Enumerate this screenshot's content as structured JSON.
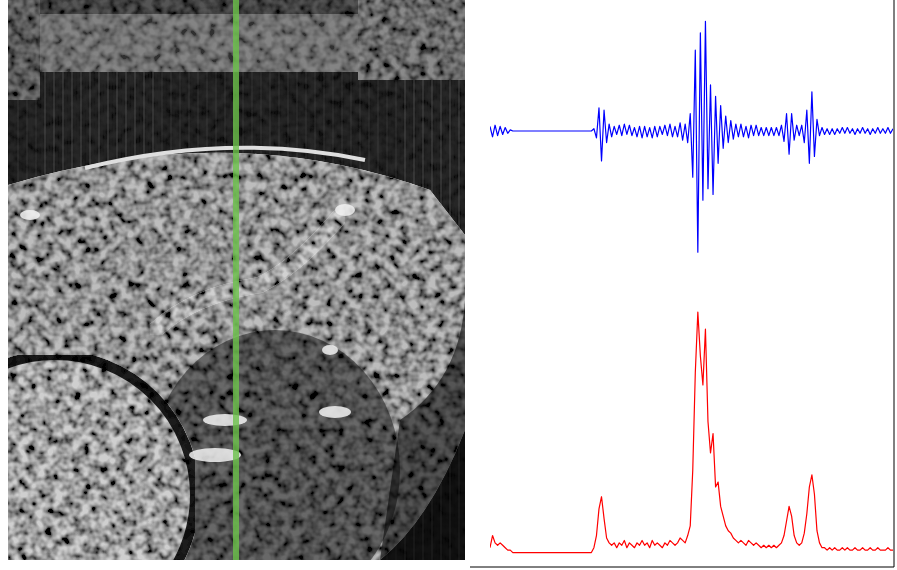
{
  "chart_data": [
    {
      "type": "line",
      "color": "#0000ff",
      "tick_labels": false,
      "xlim": [
        0,
        159
      ],
      "ylim": [
        -1.1,
        1.1
      ],
      "x": [
        0,
        1,
        2,
        3,
        4,
        5,
        6,
        7,
        8,
        9,
        10,
        11,
        12,
        13,
        14,
        15,
        16,
        17,
        18,
        19,
        20,
        21,
        22,
        23,
        24,
        25,
        26,
        27,
        28,
        29,
        30,
        31,
        32,
        33,
        34,
        35,
        36,
        37,
        38,
        39,
        40,
        41,
        42,
        43,
        44,
        45,
        46,
        47,
        48,
        49,
        50,
        51,
        52,
        53,
        54,
        55,
        56,
        57,
        58,
        59,
        60,
        61,
        62,
        63,
        64,
        65,
        66,
        67,
        68,
        69,
        70,
        71,
        72,
        73,
        74,
        75,
        76,
        77,
        78,
        79,
        80,
        81,
        82,
        83,
        84,
        85,
        86,
        87,
        88,
        89,
        90,
        91,
        92,
        93,
        94,
        95,
        96,
        97,
        98,
        99,
        100,
        101,
        102,
        103,
        104,
        105,
        106,
        107,
        108,
        109,
        110,
        111,
        112,
        113,
        114,
        115,
        116,
        117,
        118,
        119,
        120,
        121,
        122,
        123,
        124,
        125,
        126,
        127,
        128,
        129,
        130,
        131,
        132,
        133,
        134,
        135,
        136,
        137,
        138,
        139,
        140,
        141,
        142,
        143,
        144,
        145,
        146,
        147,
        148,
        149,
        150,
        151,
        152,
        153,
        154,
        155,
        156,
        157,
        158,
        159
      ],
      "values": [
        0.04,
        -0.05,
        0.05,
        -0.04,
        0.04,
        -0.03,
        0.03,
        -0.02,
        0.01,
        0,
        0,
        0,
        0,
        0,
        0,
        0,
        0,
        0,
        0,
        0,
        0,
        0,
        0,
        0,
        0,
        0,
        0,
        0,
        0,
        0,
        0,
        0,
        0,
        0,
        0,
        0,
        0,
        0,
        0,
        0,
        0,
        0.02,
        -0.06,
        0.2,
        -0.26,
        0.18,
        -0.1,
        0.06,
        -0.05,
        0.04,
        -0.03,
        0.05,
        -0.04,
        0.06,
        -0.03,
        0.05,
        -0.04,
        0.03,
        -0.05,
        0.04,
        -0.06,
        0.04,
        -0.05,
        0.03,
        -0.06,
        0.04,
        -0.05,
        0.04,
        -0.03,
        0.05,
        -0.04,
        0.06,
        -0.05,
        0.04,
        -0.05,
        0.07,
        -0.08,
        0.06,
        -0.1,
        0.15,
        -0.4,
        0.7,
        -1.05,
        0.85,
        -0.6,
        0.95,
        -0.5,
        0.4,
        -0.55,
        0.3,
        -0.28,
        0.22,
        -0.15,
        0.13,
        -0.1,
        0.09,
        -0.07,
        0.06,
        -0.05,
        0.06,
        -0.05,
        0.04,
        -0.06,
        0.05,
        -0.04,
        0.05,
        -0.04,
        0.03,
        -0.04,
        0.03,
        -0.04,
        0.03,
        -0.04,
        0.03,
        -0.04,
        0.05,
        -0.09,
        0.15,
        -0.2,
        0.15,
        -0.08,
        0.05,
        -0.04,
        0.05,
        -0.1,
        0.18,
        -0.28,
        0.34,
        -0.22,
        0.1,
        -0.04,
        0.03,
        -0.03,
        0.02,
        -0.03,
        0.02,
        -0.03,
        0.02,
        -0.02,
        0.03,
        -0.02,
        0.03,
        -0.02,
        0.02,
        -0.03,
        0.02,
        -0.02,
        0.03,
        -0.02,
        0.02,
        -0.03,
        0.02,
        -0.02,
        0.03,
        -0.02,
        0.02,
        -0.02,
        0.03,
        -0.02,
        0.02
      ]
    },
    {
      "type": "line",
      "color": "#ff0000",
      "tick_labels": false,
      "xlim": [
        0,
        159
      ],
      "ylim": [
        0,
        1.05
      ],
      "x": [
        0,
        1,
        2,
        3,
        4,
        5,
        6,
        7,
        8,
        9,
        10,
        11,
        12,
        13,
        14,
        15,
        16,
        17,
        18,
        19,
        20,
        21,
        22,
        23,
        24,
        25,
        26,
        27,
        28,
        29,
        30,
        31,
        32,
        33,
        34,
        35,
        36,
        37,
        38,
        39,
        40,
        41,
        42,
        43,
        44,
        45,
        46,
        47,
        48,
        49,
        50,
        51,
        52,
        53,
        54,
        55,
        56,
        57,
        58,
        59,
        60,
        61,
        62,
        63,
        64,
        65,
        66,
        67,
        68,
        69,
        70,
        71,
        72,
        73,
        74,
        75,
        76,
        77,
        78,
        79,
        80,
        81,
        82,
        83,
        84,
        85,
        86,
        87,
        88,
        89,
        90,
        91,
        92,
        93,
        94,
        95,
        96,
        97,
        98,
        99,
        100,
        101,
        102,
        103,
        104,
        105,
        106,
        107,
        108,
        109,
        110,
        111,
        112,
        113,
        114,
        115,
        116,
        117,
        118,
        119,
        120,
        121,
        122,
        123,
        124,
        125,
        126,
        127,
        128,
        129,
        130,
        131,
        132,
        133,
        134,
        135,
        136,
        137,
        138,
        139,
        140,
        141,
        142,
        143,
        144,
        145,
        146,
        147,
        148,
        149,
        150,
        151,
        152,
        153,
        154,
        155,
        156,
        157,
        158,
        159
      ],
      "values": [
        0.03,
        0.08,
        0.05,
        0.04,
        0.05,
        0.04,
        0.03,
        0.02,
        0.02,
        0.01,
        0.01,
        0.01,
        0.01,
        0.01,
        0.01,
        0.01,
        0.01,
        0.01,
        0.01,
        0.01,
        0.01,
        0.01,
        0.01,
        0.01,
        0.01,
        0.01,
        0.01,
        0.01,
        0.01,
        0.01,
        0.01,
        0.01,
        0.01,
        0.01,
        0.01,
        0.01,
        0.01,
        0.01,
        0.01,
        0.01,
        0.01,
        0.03,
        0.08,
        0.19,
        0.24,
        0.15,
        0.07,
        0.05,
        0.04,
        0.05,
        0.03,
        0.05,
        0.04,
        0.06,
        0.03,
        0.05,
        0.04,
        0.03,
        0.05,
        0.04,
        0.06,
        0.04,
        0.05,
        0.03,
        0.06,
        0.04,
        0.05,
        0.04,
        0.03,
        0.05,
        0.04,
        0.06,
        0.05,
        0.04,
        0.05,
        0.07,
        0.06,
        0.05,
        0.08,
        0.12,
        0.35,
        0.75,
        1.0,
        0.82,
        0.7,
        0.93,
        0.55,
        0.42,
        0.5,
        0.28,
        0.3,
        0.2,
        0.16,
        0.12,
        0.1,
        0.09,
        0.07,
        0.06,
        0.05,
        0.06,
        0.05,
        0.04,
        0.06,
        0.05,
        0.04,
        0.05,
        0.04,
        0.03,
        0.04,
        0.03,
        0.04,
        0.03,
        0.04,
        0.03,
        0.04,
        0.05,
        0.08,
        0.14,
        0.2,
        0.16,
        0.08,
        0.05,
        0.04,
        0.05,
        0.09,
        0.17,
        0.28,
        0.33,
        0.25,
        0.1,
        0.05,
        0.03,
        0.03,
        0.02,
        0.03,
        0.02,
        0.03,
        0.02,
        0.02,
        0.03,
        0.02,
        0.03,
        0.02,
        0.02,
        0.03,
        0.02,
        0.02,
        0.03,
        0.02,
        0.02,
        0.03,
        0.02,
        0.02,
        0.03,
        0.02,
        0.02,
        0.02,
        0.03,
        0.02,
        0.02
      ]
    }
  ]
}
